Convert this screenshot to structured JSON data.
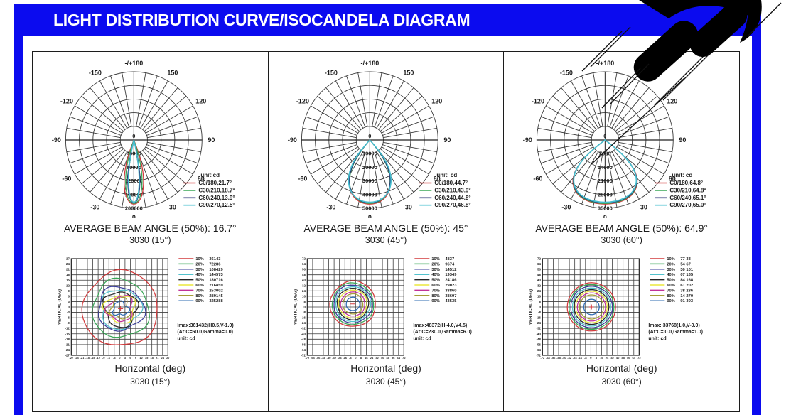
{
  "page": {
    "title": "LIGHT DISTRIBUTION CURVE/ISOCANDELA DIAGRAM",
    "accent_color": "#0b0bef"
  },
  "icons": {
    "decoration": "spotlight-beams"
  },
  "chart_data": [
    {
      "type": "line",
      "subtype": "polar-light-distribution",
      "title": "3030 (15°)",
      "average_beam_angle_label": "AVERAGE BEAM ANGLE (50%): 16.7°",
      "unit_label": "unit:cd",
      "angle_tick_labels": [
        "0",
        "30",
        "60",
        "90",
        "120",
        "150",
        "-/+180",
        "-150",
        "-120",
        "-90",
        "-60",
        "-30"
      ],
      "radial_ticks": [
        0,
        40000,
        80000,
        120000,
        160000,
        200000
      ],
      "series": [
        {
          "name": "C0/180",
          "beam_angle_deg": 21.7,
          "label": "C0/180,21.7°",
          "color": "#d23a3c"
        },
        {
          "name": "C30/210",
          "beam_angle_deg": 18.7,
          "label": "C30/210,18.7°",
          "color": "#3aa757"
        },
        {
          "name": "C60/240",
          "beam_angle_deg": 13.9,
          "label": "C60/240,13.9°",
          "color": "#283074"
        },
        {
          "name": "C90/270",
          "beam_angle_deg": 12.5,
          "label": "C90/270,12.5°",
          "color": "#45bfcf"
        }
      ]
    },
    {
      "type": "contour",
      "subtype": "isocandela",
      "title": "3030 (15°)",
      "xlabel": "Horizontal (deg)",
      "ylabel": "VERTICAL (DEG)",
      "axis": {
        "min": -27,
        "max": 27,
        "step": 3
      },
      "center_deg": [
        0.5,
        -1.0
      ],
      "contour_style": "irregular",
      "levels": [
        {
          "pct": "10%",
          "value": "36143",
          "radius_deg": 21.0,
          "color": "#d23a3c"
        },
        {
          "pct": "20%",
          "value": "72286",
          "radius_deg": 16.0,
          "color": "#3aa757"
        },
        {
          "pct": "30%",
          "value": "108429",
          "radius_deg": 12.5,
          "color": "#3b3e9b"
        },
        {
          "pct": "40%",
          "value": "144573",
          "radius_deg": 11.0,
          "color": "#52c2cd"
        },
        {
          "pct": "50%",
          "value": "180716",
          "radius_deg": 9.5,
          "color": "#262626"
        },
        {
          "pct": "60%",
          "value": "216859",
          "radius_deg": 8.0,
          "color": "#ece73c"
        },
        {
          "pct": "70%",
          "value": "253002",
          "radius_deg": 7.0,
          "color": "#c23399"
        },
        {
          "pct": "80%",
          "value": "289145",
          "radius_deg": 5.5,
          "color": "#a69d38"
        },
        {
          "pct": "90%",
          "value": "325288",
          "radius_deg": 4.0,
          "color": "#2e6bb2"
        }
      ],
      "imax_lines": [
        "Imax:361432(H0.5,V-1.0)",
        "(At:C=60.0,Gamma=0.0)",
        "unit: cd"
      ]
    },
    {
      "type": "line",
      "subtype": "polar-light-distribution",
      "title": "3030 (45°)",
      "average_beam_angle_label": "AVERAGE BEAM ANGLE (50%): 45°",
      "unit_label": "unit: cd",
      "angle_tick_labels": [
        "0",
        "30",
        "60",
        "90",
        "120",
        "150",
        "-/+180",
        "-150",
        "-120",
        "-90",
        "-60",
        "-30"
      ],
      "radial_ticks": [
        0,
        10000,
        20000,
        30000,
        40000,
        50000
      ],
      "series": [
        {
          "name": "C0/180",
          "beam_angle_deg": 44.7,
          "label": "C0/180,44.7°",
          "color": "#d23a3c"
        },
        {
          "name": "C30/210",
          "beam_angle_deg": 43.9,
          "label": "C30/210,43.9°",
          "color": "#3aa757"
        },
        {
          "name": "C60/240",
          "beam_angle_deg": 44.8,
          "label": "C60/240,44.8°",
          "color": "#283074"
        },
        {
          "name": "C90/270",
          "beam_angle_deg": 46.8,
          "label": "C90/270,46.8°",
          "color": "#45bfcf"
        }
      ]
    },
    {
      "type": "contour",
      "subtype": "isocandela",
      "title": "3030 (45°)",
      "xlabel": "Horizontal (deg)",
      "ylabel": "VERTICAL (DEG)",
      "axis": {
        "min": -72,
        "max": 72,
        "step": 8
      },
      "center_deg": [
        -4.0,
        4.5
      ],
      "contour_style": "slight",
      "levels": [
        {
          "pct": "10%",
          "value": "4837",
          "radius_deg": 34.0,
          "color": "#d23a3c"
        },
        {
          "pct": "20%",
          "value": "9674",
          "radius_deg": 31.0,
          "color": "#3aa757"
        },
        {
          "pct": "30%",
          "value": "14512",
          "radius_deg": 28.5,
          "color": "#3b3e9b"
        },
        {
          "pct": "40%",
          "value": "19349",
          "radius_deg": 26.0,
          "color": "#52c2cd"
        },
        {
          "pct": "50%",
          "value": "24186",
          "radius_deg": 23.5,
          "color": "#262626"
        },
        {
          "pct": "60%",
          "value": "29023",
          "radius_deg": 21.0,
          "color": "#ece73c"
        },
        {
          "pct": "70%",
          "value": "33860",
          "radius_deg": 18.0,
          "color": "#c23399"
        },
        {
          "pct": "80%",
          "value": "38697",
          "radius_deg": 15.0,
          "color": "#a69d38"
        },
        {
          "pct": "90%",
          "value": "43535",
          "radius_deg": 10.0,
          "color": "#2e6bb2"
        }
      ],
      "imax_lines": [
        "Imax:48372(H-4.0,V4.5)",
        "(At:C=230.0,Gamma=6.0)",
        "unit: cd"
      ]
    },
    {
      "type": "line",
      "subtype": "polar-light-distribution",
      "title": "3030 (60°)",
      "average_beam_angle_label": "AVERAGE BEAM ANGLE (50%): 64.9°",
      "unit_label": "unit: cd",
      "angle_tick_labels": [
        "0",
        "30",
        "60",
        "90",
        "120",
        "150",
        "-/+180",
        "-150",
        "-120",
        "-90",
        "-60",
        "-30"
      ],
      "radial_ticks": [
        0,
        7000,
        14000,
        21000,
        28000,
        35000
      ],
      "series": [
        {
          "name": "C0/180",
          "beam_angle_deg": 64.8,
          "label": "C0/180,64.8°",
          "color": "#d23a3c"
        },
        {
          "name": "C30/210",
          "beam_angle_deg": 64.8,
          "label": "C30/210,64.8°",
          "color": "#3aa757"
        },
        {
          "name": "C60/240",
          "beam_angle_deg": 65.1,
          "label": "C60/240,65.1°",
          "color": "#283074"
        },
        {
          "name": "C90/270",
          "beam_angle_deg": 65.0,
          "label": "C90/270,65.0°",
          "color": "#45bfcf"
        }
      ]
    },
    {
      "type": "contour",
      "subtype": "isocandela",
      "title": "3030 (60°)",
      "xlabel": "Horizontal (deg)",
      "ylabel": "VERTICAL (DEG)",
      "axis": {
        "min": -72,
        "max": 72,
        "step": 8
      },
      "center_deg": [
        1.0,
        0.0
      ],
      "contour_style": "circle",
      "levels": [
        {
          "pct": "10%",
          "value": "77 33",
          "radius_deg": 36.0,
          "color": "#d23a3c"
        },
        {
          "pct": "20%",
          "value": "54 67",
          "radius_deg": 33.5,
          "color": "#3aa757"
        },
        {
          "pct": "30%",
          "value": "30 101",
          "radius_deg": 31.0,
          "color": "#3b3e9b"
        },
        {
          "pct": "40%",
          "value": "07 135",
          "radius_deg": 28.5,
          "color": "#52c2cd"
        },
        {
          "pct": "50%",
          "value": "84 168",
          "radius_deg": 26.0,
          "color": "#262626"
        },
        {
          "pct": "60%",
          "value": "61 202",
          "radius_deg": 23.5,
          "color": "#ece73c"
        },
        {
          "pct": "70%",
          "value": "38 236",
          "radius_deg": 21.0,
          "color": "#c23399"
        },
        {
          "pct": "80%",
          "value": "14 270",
          "radius_deg": 18.0,
          "color": "#a69d38"
        },
        {
          "pct": "90%",
          "value": "91 303",
          "radius_deg": 11.5,
          "color": "#2e6bb2"
        }
      ],
      "imax_lines": [
        "Imax: 33768(1.0,V-0.0)",
        "(At:C= 0.0,Gamma=1.0)",
        "unit: cd"
      ]
    }
  ]
}
